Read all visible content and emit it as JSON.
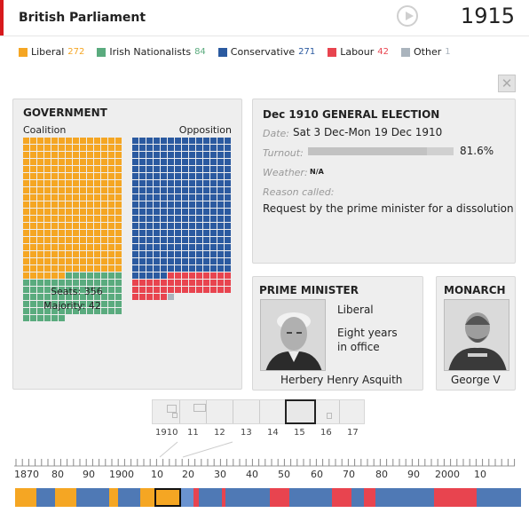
{
  "header": {
    "title": "British Parliament",
    "year": "1915"
  },
  "legend": [
    {
      "name": "Liberal",
      "count": "272",
      "color": "#f5a623"
    },
    {
      "name": "Irish Nationalists",
      "count": "84",
      "color": "#5aab7e"
    },
    {
      "name": "Conservative",
      "count": "271",
      "color": "#2b5aa0"
    },
    {
      "name": "Labour",
      "count": "42",
      "color": "#e8444f"
    },
    {
      "name": "Other",
      "count": "1",
      "color": "#aab4bd"
    }
  ],
  "government": {
    "title": "GOVERNMENT",
    "coalition_label": "Coalition",
    "opposition_label": "Opposition",
    "seats": "Seats: 356",
    "majority": "Majority: 42"
  },
  "election": {
    "title": "Dec 1910 GENERAL ELECTION",
    "date_label": "Date:",
    "date_value": "Sat 3 Dec-Mon 19 Dec 1910",
    "turnout_label": "Turnout:",
    "turnout_value": "81.6%",
    "turnout_fraction": 0.816,
    "weather_label": "Weather:",
    "weather_value": "N/A",
    "reason_label": "Reason called:",
    "reason_value": "Request by the prime minister for a dissolution"
  },
  "pm": {
    "title": "PRIME MINISTER",
    "party": "Liberal",
    "tenure_line1": "Eight years",
    "tenure_line2": "in office",
    "name": "Herbery Henry Asquith"
  },
  "monarch": {
    "title": "MONARCH",
    "name": "George V"
  },
  "zoom_timeline": {
    "labels": [
      "1910",
      "11",
      "12",
      "13",
      "14",
      "15",
      "16",
      "17"
    ]
  },
  "main_timeline": {
    "labels": [
      "1870",
      "80",
      "90",
      "1900",
      "10",
      "20",
      "30",
      "40",
      "50",
      "60",
      "70",
      "80",
      "90",
      "2000",
      "10"
    ]
  },
  "icons": {
    "play": "play-icon",
    "close": "close-icon"
  }
}
